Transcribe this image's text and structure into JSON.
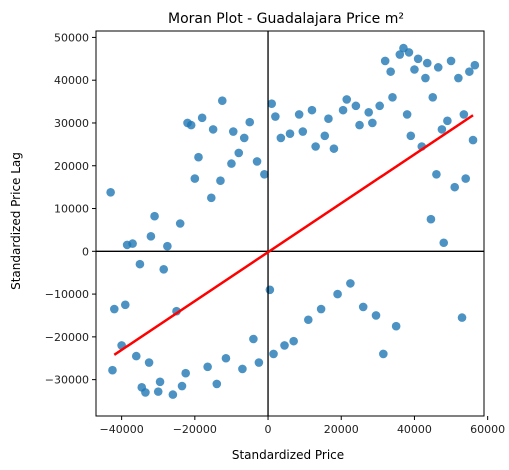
{
  "chart_data": {
    "type": "scatter",
    "title": "Moran Plot - Guadalajara Price m²",
    "xlabel": "Standardized Price",
    "ylabel": "Standardized Price Lag",
    "xlim": [
      -47000,
      59000
    ],
    "ylim": [
      -38500,
      51500
    ],
    "xticks": [
      -40000,
      -20000,
      0,
      20000,
      40000,
      60000
    ],
    "yticks": [
      -30000,
      -20000,
      -10000,
      0,
      10000,
      20000,
      30000,
      40000,
      50000
    ],
    "xtick_labels": [
      "−40000",
      "−20000",
      "0",
      "20000",
      "40000",
      "60000"
    ],
    "ytick_labels": [
      "−30000",
      "−20000",
      "−10000",
      "0",
      "10000",
      "20000",
      "30000",
      "40000",
      "50000"
    ],
    "grid": false,
    "reference_lines": {
      "x": 0,
      "y": 0,
      "color": "#000000"
    },
    "point_color": "#1f77b4",
    "point_alpha": 0.8,
    "fit_color": "#ff0000",
    "fit_line": {
      "x": [
        -42000,
        56000
      ],
      "y": [
        -24200,
        31800
      ]
    },
    "points": [
      [
        -43000,
        13800
      ],
      [
        -42500,
        -27800
      ],
      [
        -42000,
        -13500
      ],
      [
        -40000,
        -22000
      ],
      [
        -39000,
        -12500
      ],
      [
        -38500,
        1500
      ],
      [
        -37000,
        1800
      ],
      [
        -36000,
        -24500
      ],
      [
        -35000,
        -3000
      ],
      [
        -34500,
        -31800
      ],
      [
        -33500,
        -33000
      ],
      [
        -32500,
        -26000
      ],
      [
        -32000,
        3500
      ],
      [
        -31000,
        8200
      ],
      [
        -30000,
        -32800
      ],
      [
        -29500,
        -30500
      ],
      [
        -28500,
        -4200
      ],
      [
        -27500,
        1200
      ],
      [
        -26000,
        -33500
      ],
      [
        -25000,
        -14000
      ],
      [
        -24000,
        6500
      ],
      [
        -23500,
        -31500
      ],
      [
        -22500,
        -28500
      ],
      [
        -22000,
        30000
      ],
      [
        -21000,
        29500
      ],
      [
        -20000,
        17000
      ],
      [
        -19000,
        22000
      ],
      [
        -18000,
        31200
      ],
      [
        -16500,
        -27000
      ],
      [
        -15500,
        12500
      ],
      [
        -15000,
        28500
      ],
      [
        -14000,
        -31000
      ],
      [
        -13000,
        16500
      ],
      [
        -12500,
        35200
      ],
      [
        -11500,
        -25000
      ],
      [
        -10000,
        20500
      ],
      [
        -9500,
        28000
      ],
      [
        -8000,
        23000
      ],
      [
        -7000,
        -27500
      ],
      [
        -6500,
        26500
      ],
      [
        -5000,
        30200
      ],
      [
        -4000,
        -20500
      ],
      [
        -3000,
        21000
      ],
      [
        -2500,
        -26000
      ],
      [
        -1000,
        18000
      ],
      [
        500,
        -9000
      ],
      [
        1000,
        34500
      ],
      [
        1500,
        -24000
      ],
      [
        2000,
        31500
      ],
      [
        3500,
        26500
      ],
      [
        4500,
        -22000
      ],
      [
        6000,
        27500
      ],
      [
        7000,
        -21000
      ],
      [
        8500,
        32000
      ],
      [
        9500,
        28000
      ],
      [
        11000,
        -16000
      ],
      [
        12000,
        33000
      ],
      [
        13000,
        24500
      ],
      [
        14500,
        -13500
      ],
      [
        15500,
        27000
      ],
      [
        16500,
        31000
      ],
      [
        18000,
        24000
      ],
      [
        19000,
        -10000
      ],
      [
        20500,
        33000
      ],
      [
        21500,
        35500
      ],
      [
        22500,
        -7500
      ],
      [
        24000,
        34000
      ],
      [
        25000,
        29500
      ],
      [
        26000,
        -13000
      ],
      [
        27500,
        32500
      ],
      [
        28500,
        30000
      ],
      [
        29500,
        -15000
      ],
      [
        30500,
        34000
      ],
      [
        31500,
        -24000
      ],
      [
        32000,
        44500
      ],
      [
        33500,
        42000
      ],
      [
        34000,
        36000
      ],
      [
        35000,
        -17500
      ],
      [
        36000,
        46000
      ],
      [
        37000,
        47500
      ],
      [
        38000,
        32000
      ],
      [
        38500,
        46500
      ],
      [
        39000,
        27000
      ],
      [
        40000,
        42500
      ],
      [
        41000,
        45000
      ],
      [
        42000,
        24500
      ],
      [
        43000,
        40500
      ],
      [
        43500,
        44000
      ],
      [
        44500,
        7500
      ],
      [
        45000,
        36000
      ],
      [
        46000,
        18000
      ],
      [
        46500,
        43000
      ],
      [
        47500,
        28500
      ],
      [
        48000,
        2000
      ],
      [
        49000,
        30500
      ],
      [
        50000,
        44500
      ],
      [
        51000,
        15000
      ],
      [
        52000,
        40500
      ],
      [
        53000,
        -15500
      ],
      [
        53500,
        32000
      ],
      [
        54000,
        17000
      ],
      [
        55000,
        42000
      ],
      [
        56000,
        26000
      ],
      [
        56500,
        43500
      ]
    ]
  }
}
